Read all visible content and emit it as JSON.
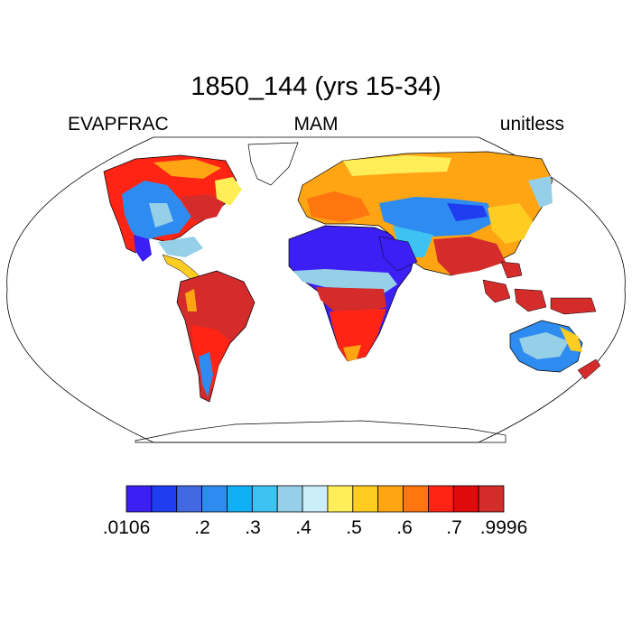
{
  "title": "1850_144 (yrs 15-34)",
  "variable": "EVAPFRAC",
  "season": "MAM",
  "units": "unitless",
  "colorbar": {
    "colors": [
      "#3b1ff5",
      "#1f3df0",
      "#4169e1",
      "#2e8cf0",
      "#0fb0f5",
      "#3ec2f2",
      "#96cfe8",
      "#cceefa",
      "#ffee58",
      "#ffcc22",
      "#ffa514",
      "#ff7510",
      "#ff2414",
      "#e00a0a",
      "#d42b2b"
    ],
    "labels": [
      ".0106",
      ".2",
      ".3",
      ".4",
      ".5",
      ".6",
      ".7",
      ".9996"
    ]
  }
}
